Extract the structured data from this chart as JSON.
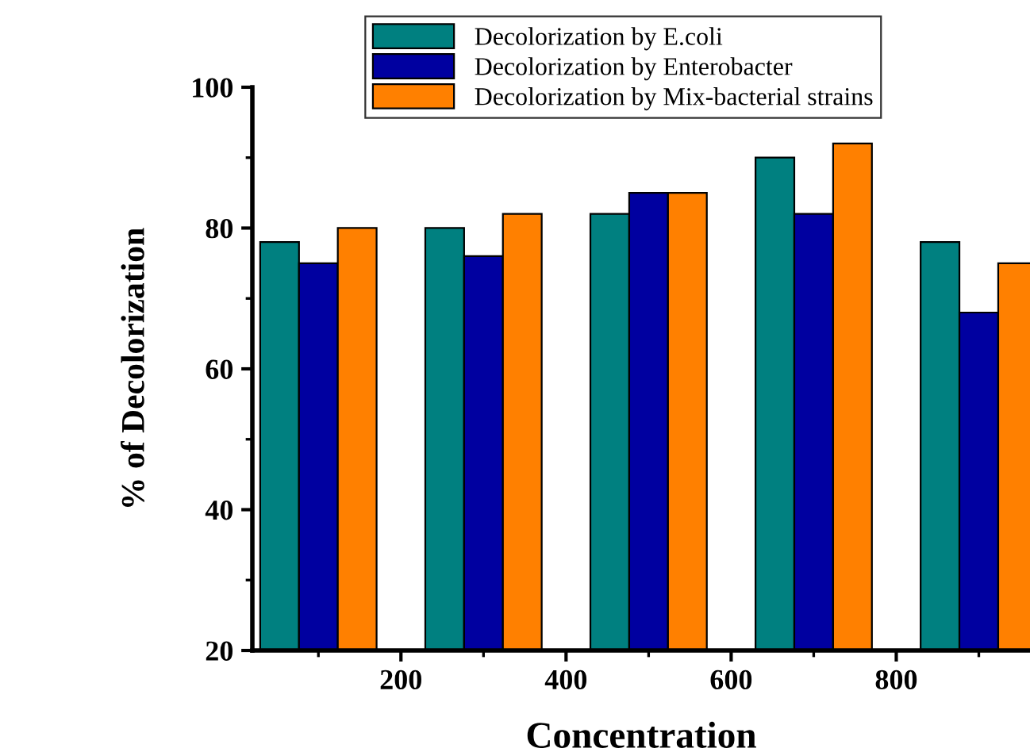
{
  "chart_data": {
    "type": "bar",
    "xlabel": "Concentration",
    "ylabel": "% of Decolorization",
    "x": [
      100,
      300,
      500,
      700,
      900
    ],
    "series": [
      {
        "name": "Decolorization by E.coli",
        "color": "#008080",
        "values": [
          78,
          80,
          82,
          90,
          78
        ]
      },
      {
        "name": "Decolorization by Enterobacter",
        "color": "#0000a0",
        "values": [
          75,
          76,
          85,
          82,
          68
        ]
      },
      {
        "name": "Decolorization by Mix-bacterial strains",
        "color": "#ff8000",
        "values": [
          80,
          82,
          85,
          92,
          75
        ]
      }
    ],
    "xlim": [
      20,
      962
    ],
    "ylim": [
      20,
      100
    ],
    "xticks": [
      {
        "value": 100,
        "label": null
      },
      200,
      {
        "value": 300,
        "label": null
      },
      400,
      {
        "value": 500,
        "label": null
      },
      600,
      {
        "value": 700,
        "label": null
      },
      800,
      {
        "value": 900,
        "label": null
      }
    ],
    "yticks": [
      20,
      {
        "value": 30,
        "label": null
      },
      40,
      {
        "value": 50,
        "label": null
      },
      60,
      {
        "value": 70,
        "label": null
      },
      80,
      {
        "value": 90,
        "label": null
      },
      100
    ],
    "grid": false,
    "legend": "top"
  }
}
